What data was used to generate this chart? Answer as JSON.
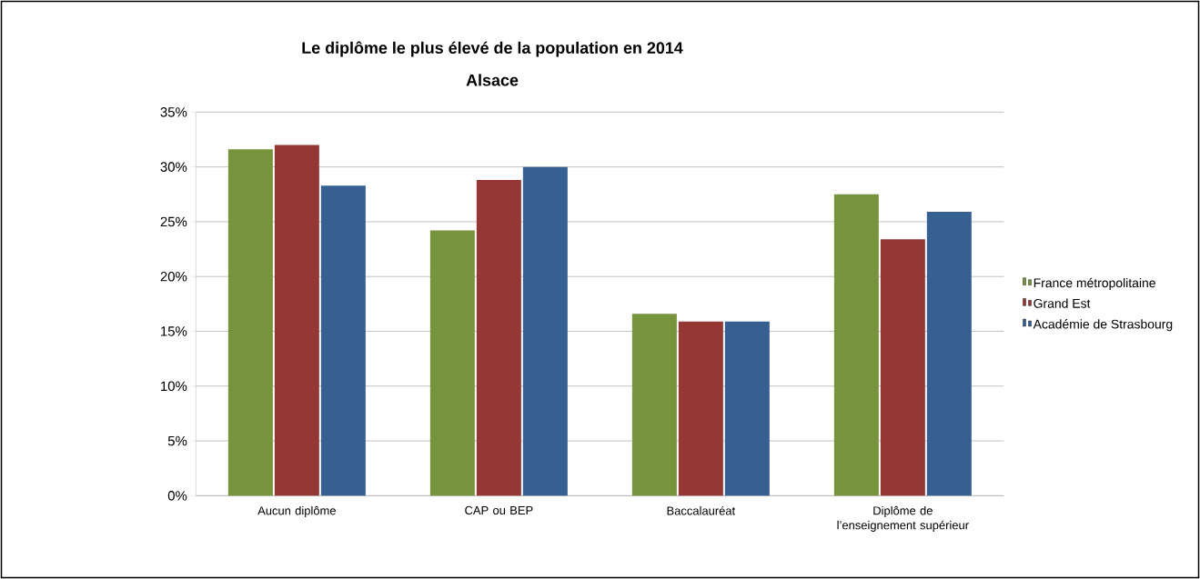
{
  "chart_data": {
    "type": "bar",
    "title": "Le diplôme le plus élevé de la population en 2014",
    "subtitle": "Alsace",
    "categories": [
      "Aucun diplôme",
      "CAP ou BEP",
      "Baccalauréat",
      "Diplôme de l’enseignement supérieur"
    ],
    "series": [
      {
        "name": "France métropolitaine",
        "color": "#77933c",
        "values": [
          31.6,
          24.2,
          16.6,
          27.5
        ]
      },
      {
        "name": "Grand Est",
        "color": "#953735",
        "values": [
          32.0,
          28.8,
          15.9,
          23.4
        ]
      },
      {
        "name": "Académie de Strasbourg",
        "color": "#376092",
        "values": [
          28.3,
          30.0,
          15.9,
          25.9
        ]
      }
    ],
    "ylim": [
      0,
      35
    ],
    "yticks": [
      {
        "value": 0,
        "label": "0%"
      },
      {
        "value": 5,
        "label": "5%"
      },
      {
        "value": 10,
        "label": "10%"
      },
      {
        "value": 15,
        "label": "15%"
      },
      {
        "value": 20,
        "label": "20%"
      },
      {
        "value": 25,
        "label": "25%"
      },
      {
        "value": 30,
        "label": "30%"
      },
      {
        "value": 35,
        "label": "35%"
      }
    ],
    "grid": "y",
    "legend": "right"
  }
}
